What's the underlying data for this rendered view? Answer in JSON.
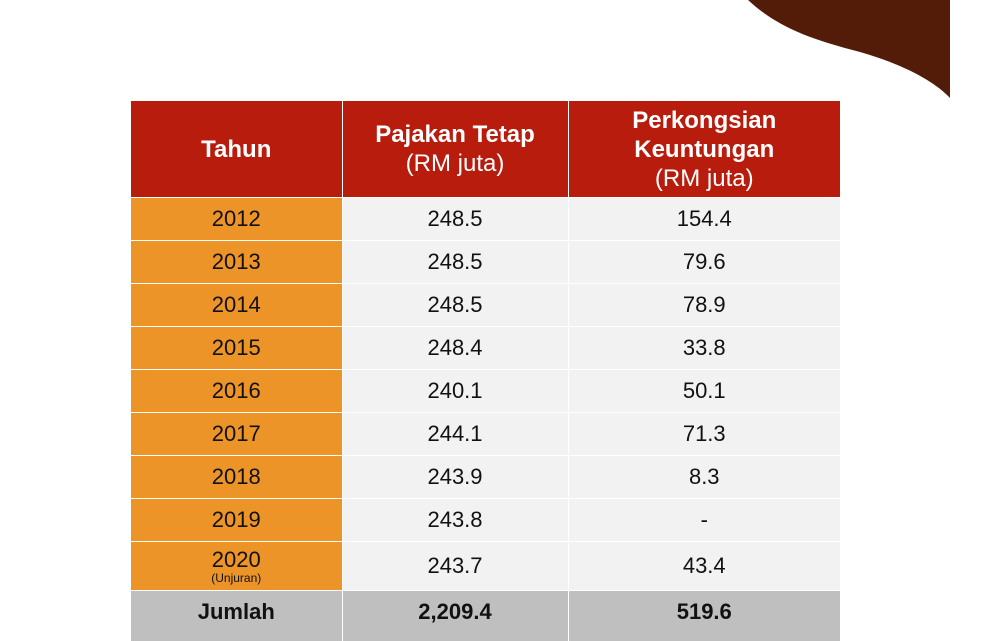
{
  "colors": {
    "header_bg": "#b81c0c",
    "year_bg": "#ec9428",
    "value_bg": "#f2f2f2",
    "total_bg": "#bfbfbf",
    "corner_shape": "#521c08"
  },
  "table": {
    "headers": [
      {
        "main": "Tahun",
        "sub": ""
      },
      {
        "main": "Pajakan Tetap",
        "sub": "(RM juta)"
      },
      {
        "main": "Perkongsian Keuntungan",
        "sub": "(RM juta)"
      }
    ],
    "rows": [
      {
        "year": "2012",
        "note": "",
        "fixed": "248.5",
        "profit": "154.4"
      },
      {
        "year": "2013",
        "note": "",
        "fixed": "248.5",
        "profit": "79.6"
      },
      {
        "year": "2014",
        "note": "",
        "fixed": "248.5",
        "profit": "78.9"
      },
      {
        "year": "2015",
        "note": "",
        "fixed": "248.4",
        "profit": "33.8"
      },
      {
        "year": "2016",
        "note": "",
        "fixed": "240.1",
        "profit": "50.1"
      },
      {
        "year": "2017",
        "note": "",
        "fixed": "244.1",
        "profit": "71.3"
      },
      {
        "year": "2018",
        "note": "",
        "fixed": "243.9",
        "profit": "8.3"
      },
      {
        "year": "2019",
        "note": "",
        "fixed": "243.8",
        "profit": "-"
      },
      {
        "year": "2020",
        "note": "(Unjuran)",
        "fixed": "243.7",
        "profit": "43.4"
      }
    ],
    "total": {
      "label": "Jumlah",
      "fixed": "2,209.4",
      "profit": "519.6"
    }
  }
}
